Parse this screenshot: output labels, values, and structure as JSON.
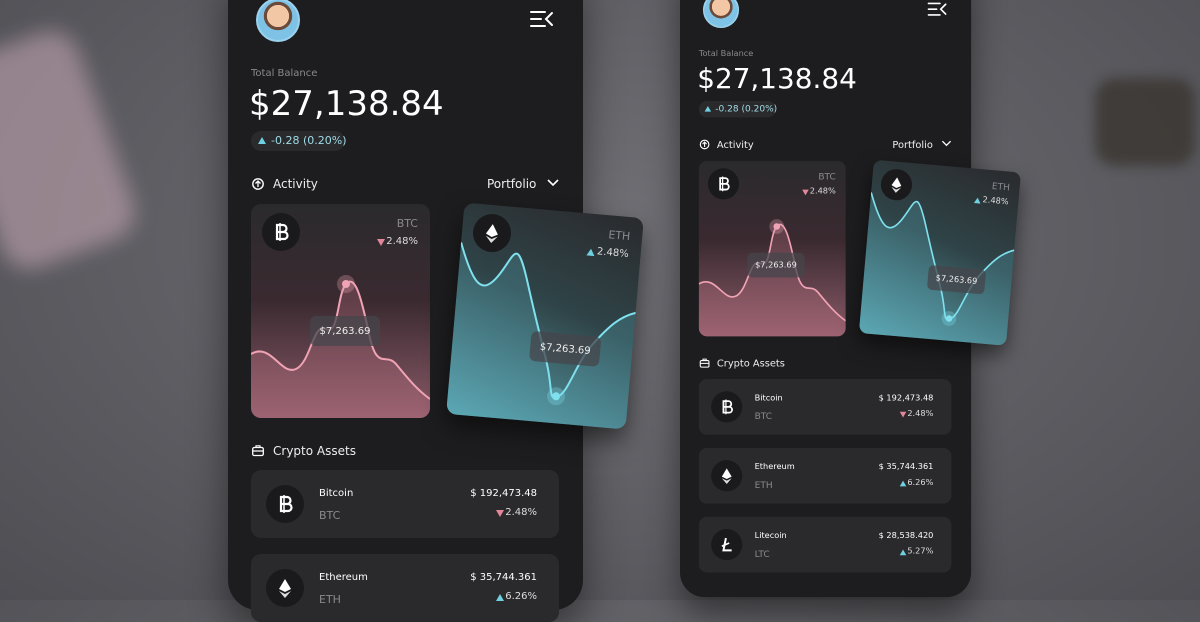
{
  "phones": [
    {
      "balance_label": "Total Balance",
      "balance": "$27,138.84",
      "change": "-0.28 (0.20%)",
      "activity": "Activity",
      "portfolio": "Portfolio",
      "cards": [
        {
          "symbol": "BTC",
          "change": "2.48%",
          "price": "$7,263.69"
        },
        {
          "symbol": "ETH",
          "change": "2.48%",
          "price": "$7,263.69"
        }
      ],
      "assets_title": "Crypto Assets",
      "assets": [
        {
          "name": "Bitcoin",
          "symbol": "BTC",
          "price": "$ 192,473.48",
          "change": "2.48%"
        },
        {
          "name": "Ethereum",
          "symbol": "ETH",
          "price": "$ 35,744.361",
          "change": "6.26%"
        }
      ]
    },
    {
      "balance_label": "Total Balance",
      "balance": "$27,138.84",
      "change": "-0.28 (0.20%)",
      "activity": "Activity",
      "portfolio": "Portfolio",
      "cards": [
        {
          "symbol": "BTC",
          "change": "2.48%",
          "price": "$7,263.69"
        },
        {
          "symbol": "ETH",
          "change": "2.48%",
          "price": "$7,263.69"
        }
      ],
      "assets_title": "Crypto Assets",
      "assets": [
        {
          "name": "Bitcoin",
          "symbol": "BTC",
          "price": "$ 192,473.48",
          "change": "2.48%"
        },
        {
          "name": "Ethereum",
          "symbol": "ETH",
          "price": "$ 35,744.361",
          "change": "6.26%"
        },
        {
          "name": "Litecoin",
          "symbol": "LTC",
          "price": "$ 28,538.420",
          "change": "5.27%"
        }
      ]
    }
  ]
}
